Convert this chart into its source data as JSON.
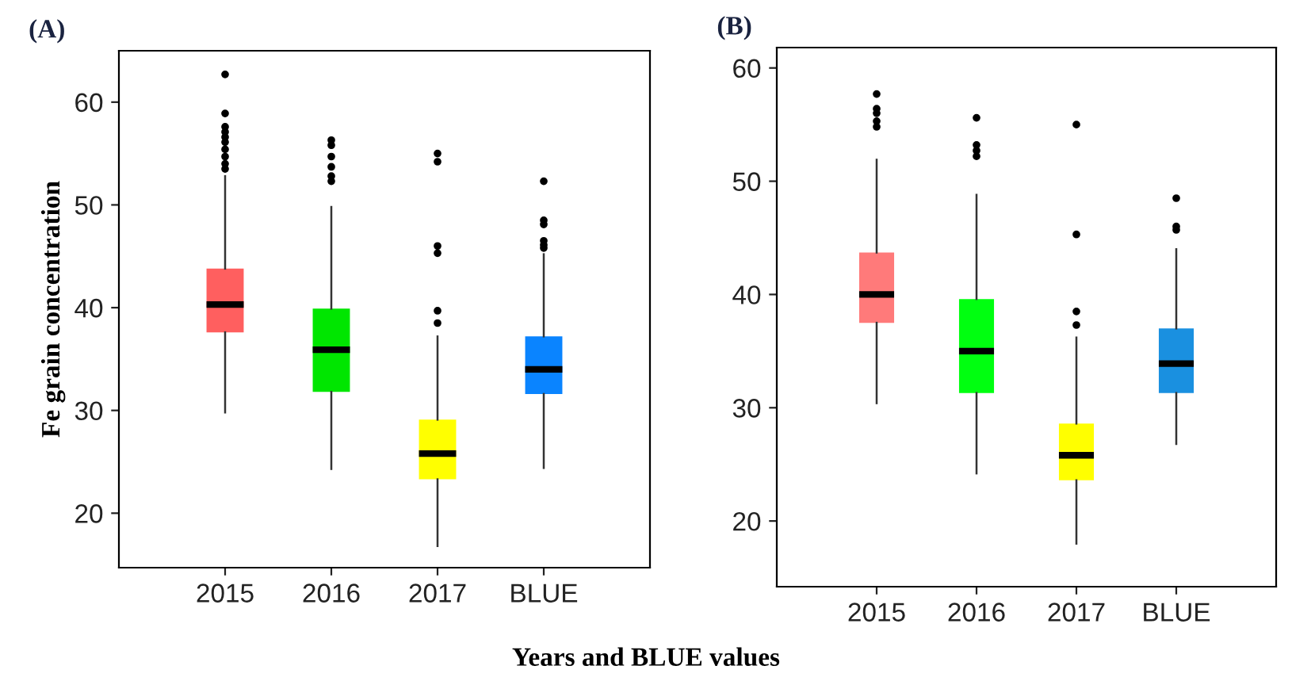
{
  "chart_data": [
    {
      "type": "box",
      "title": "(A)",
      "ylabel": "Fe grain concentration",
      "xlabel": "Years and BLUE values",
      "categories": [
        "2015",
        "2016",
        "2017",
        "BLUE"
      ],
      "colors": [
        "#ff5f5f",
        "#00e600",
        "#ffff00",
        "#0a84ff"
      ],
      "ylim": [
        14.7,
        65
      ],
      "yticks": [
        20,
        30,
        40,
        50,
        60
      ],
      "grid": false,
      "legend": false,
      "boxes": [
        {
          "low": 29.8,
          "q1": 37.6,
          "median": 40.3,
          "q3": 43.8,
          "high": 52.8,
          "outliers": [
            62.7,
            58.9,
            57.6,
            57.1,
            56.6,
            56.1,
            55.4,
            54.7,
            54.0,
            53.5
          ]
        },
        {
          "low": 24.3,
          "q1": 31.8,
          "median": 35.9,
          "q3": 39.9,
          "high": 49.8,
          "outliers": [
            56.3,
            55.8,
            54.7,
            53.7,
            52.8,
            52.3
          ]
        },
        {
          "low": 16.8,
          "q1": 23.3,
          "median": 25.8,
          "q3": 29.1,
          "high": 37.2,
          "outliers": [
            55.0,
            54.2,
            46.0,
            45.3,
            39.7,
            38.5
          ]
        },
        {
          "low": 24.4,
          "q1": 31.6,
          "median": 34.0,
          "q3": 37.2,
          "high": 45.2,
          "outliers": [
            52.3,
            48.5,
            48.1,
            46.5,
            46.1,
            45.8
          ]
        }
      ]
    },
    {
      "type": "box",
      "title": "(B)",
      "categories": [
        "2015",
        "2016",
        "2017",
        "BLUE"
      ],
      "colors": [
        "#ff7a7a",
        "#00ff10",
        "#ffff00",
        "#1a90e0"
      ],
      "ylim": [
        14.2,
        61.8
      ],
      "yticks": [
        20,
        30,
        40,
        50,
        60
      ],
      "grid": false,
      "legend": false,
      "boxes": [
        {
          "low": 30.4,
          "q1": 37.5,
          "median": 40.0,
          "q3": 43.7,
          "high": 51.9,
          "outliers": [
            57.7,
            56.4,
            56.0,
            55.3,
            54.8
          ]
        },
        {
          "low": 24.2,
          "q1": 31.3,
          "median": 35.0,
          "q3": 39.6,
          "high": 48.8,
          "outliers": [
            55.6,
            53.2,
            52.7,
            52.2
          ]
        },
        {
          "low": 18.0,
          "q1": 23.6,
          "median": 25.8,
          "q3": 28.6,
          "high": 36.2,
          "outliers": [
            55.0,
            45.3,
            38.5,
            37.3
          ]
        },
        {
          "low": 26.8,
          "q1": 31.3,
          "median": 33.9,
          "q3": 37.0,
          "high": 44.0,
          "outliers": [
            48.5,
            46.0,
            45.7
          ]
        }
      ]
    }
  ]
}
